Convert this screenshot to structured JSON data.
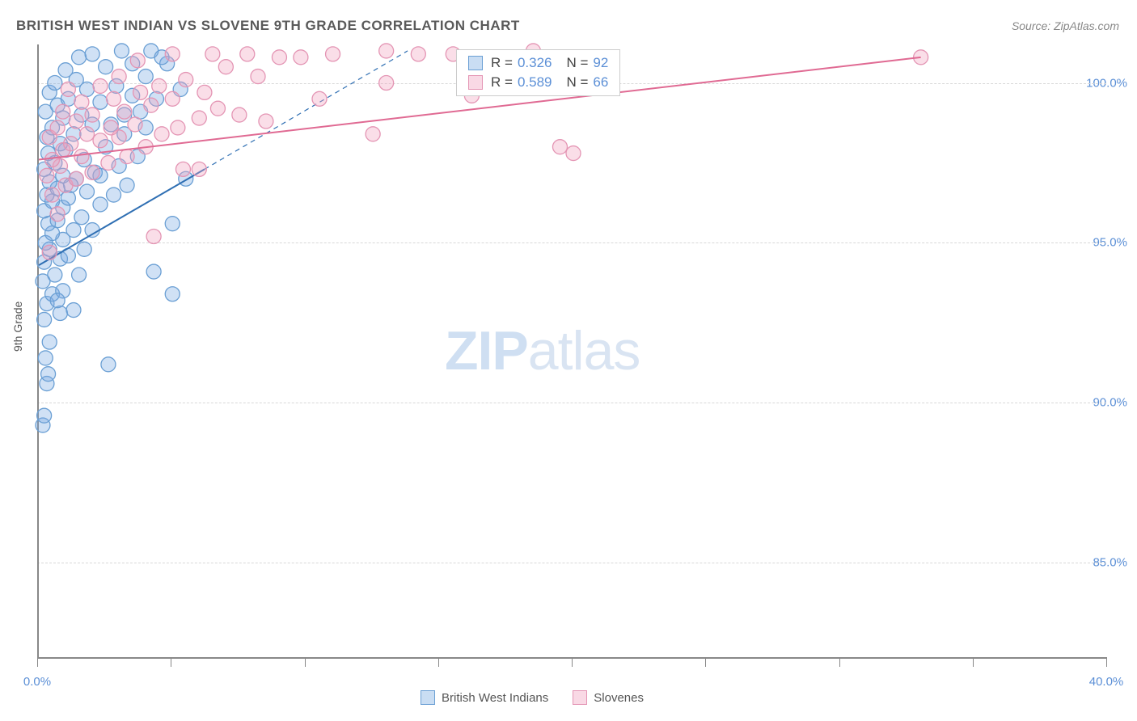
{
  "title": "BRITISH WEST INDIAN VS SLOVENE 9TH GRADE CORRELATION CHART",
  "source": "Source: ZipAtlas.com",
  "ylabel": "9th Grade",
  "watermark_zip": "ZIP",
  "watermark_atlas": "atlas",
  "chart": {
    "type": "scatter",
    "xlim": [
      0,
      40
    ],
    "ylim": [
      82,
      101.2
    ],
    "xtick_labels": [
      "0.0%",
      "40.0%"
    ],
    "xtick_positions": [
      0,
      40
    ],
    "xtick_marks": [
      0,
      5,
      10,
      15,
      20,
      25,
      30,
      35,
      40
    ],
    "ytick_labels": [
      "85.0%",
      "90.0%",
      "95.0%",
      "100.0%"
    ],
    "ytick_positions": [
      85,
      90,
      95,
      100
    ],
    "grid_color": "#d8d8d8",
    "axis_color": "#888888",
    "background_color": "#ffffff",
    "marker_radius": 9,
    "marker_stroke_width": 1.3,
    "line_width": 2,
    "dashed_line_dash": "6,5",
    "series": [
      {
        "name": "British West Indians",
        "fill_color": "rgba(120,170,225,0.35)",
        "stroke_color": "#6a9fd4",
        "line_color": "#2f6fb3",
        "legend_fill": "rgba(120,170,225,0.4)",
        "legend_stroke": "#6a9fd4",
        "R": "0.326",
        "N": "92",
        "trend": {
          "x1": 0,
          "y1": 94.3,
          "x2": 6.2,
          "y2": 97.3
        },
        "trend_ext": {
          "x1": 6.2,
          "y1": 97.3,
          "x2": 13.8,
          "y2": 101.0
        },
        "points": [
          [
            0.15,
            89.3
          ],
          [
            0.2,
            89.6
          ],
          [
            0.3,
            90.6
          ],
          [
            0.35,
            90.9
          ],
          [
            0.25,
            91.4
          ],
          [
            0.4,
            91.9
          ],
          [
            0.2,
            92.6
          ],
          [
            0.8,
            92.8
          ],
          [
            1.3,
            92.9
          ],
          [
            0.3,
            93.1
          ],
          [
            0.5,
            93.4
          ],
          [
            0.9,
            93.5
          ],
          [
            0.15,
            93.8
          ],
          [
            0.6,
            94.0
          ],
          [
            1.5,
            94.0
          ],
          [
            2.6,
            91.2
          ],
          [
            5.0,
            93.4
          ],
          [
            4.3,
            94.1
          ],
          [
            0.2,
            94.4
          ],
          [
            0.8,
            94.5
          ],
          [
            1.1,
            94.6
          ],
          [
            0.4,
            94.8
          ],
          [
            1.7,
            94.8
          ],
          [
            0.25,
            95.0
          ],
          [
            0.9,
            95.1
          ],
          [
            0.5,
            95.3
          ],
          [
            1.3,
            95.4
          ],
          [
            2.0,
            95.4
          ],
          [
            0.35,
            95.6
          ],
          [
            0.7,
            95.7
          ],
          [
            1.6,
            95.8
          ],
          [
            0.2,
            96.0
          ],
          [
            0.9,
            96.1
          ],
          [
            2.3,
            96.2
          ],
          [
            0.5,
            96.3
          ],
          [
            1.1,
            96.4
          ],
          [
            0.3,
            96.5
          ],
          [
            2.8,
            96.5
          ],
          [
            1.8,
            96.6
          ],
          [
            0.7,
            96.7
          ],
          [
            3.3,
            96.8
          ],
          [
            0.4,
            96.9
          ],
          [
            1.4,
            97.0
          ],
          [
            0.9,
            97.1
          ],
          [
            2.1,
            97.2
          ],
          [
            0.2,
            97.3
          ],
          [
            2.3,
            97.1
          ],
          [
            3.0,
            97.4
          ],
          [
            0.6,
            97.5
          ],
          [
            1.7,
            97.6
          ],
          [
            3.7,
            97.7
          ],
          [
            0.35,
            97.8
          ],
          [
            1.0,
            97.9
          ],
          [
            2.5,
            98.0
          ],
          [
            0.8,
            98.1
          ],
          [
            0.3,
            98.3
          ],
          [
            1.3,
            98.4
          ],
          [
            3.2,
            98.4
          ],
          [
            4.0,
            98.6
          ],
          [
            0.5,
            98.6
          ],
          [
            2.0,
            98.7
          ],
          [
            2.7,
            98.7
          ],
          [
            0.9,
            98.9
          ],
          [
            1.6,
            99.0
          ],
          [
            0.25,
            99.1
          ],
          [
            3.8,
            99.1
          ],
          [
            0.7,
            99.3
          ],
          [
            2.3,
            99.4
          ],
          [
            1.1,
            99.5
          ],
          [
            3.5,
            99.6
          ],
          [
            4.4,
            99.5
          ],
          [
            0.4,
            99.7
          ],
          [
            1.8,
            99.8
          ],
          [
            2.9,
            99.9
          ],
          [
            0.6,
            100.0
          ],
          [
            1.4,
            100.1
          ],
          [
            4.0,
            100.2
          ],
          [
            1.0,
            100.4
          ],
          [
            2.5,
            100.5
          ],
          [
            3.5,
            100.6
          ],
          [
            4.8,
            100.6
          ],
          [
            1.5,
            100.8
          ],
          [
            2.0,
            100.9
          ],
          [
            3.1,
            101.0
          ],
          [
            4.2,
            101.0
          ],
          [
            5.3,
            99.8
          ],
          [
            5.0,
            95.6
          ],
          [
            4.6,
            100.8
          ],
          [
            5.5,
            97.0
          ],
          [
            3.2,
            99.0
          ],
          [
            1.2,
            96.8
          ],
          [
            0.7,
            93.2
          ]
        ]
      },
      {
        "name": "Slovenes",
        "fill_color": "rgba(240,160,190,0.35)",
        "stroke_color": "#e495b4",
        "line_color": "#e06a93",
        "legend_fill": "rgba(240,160,190,0.4)",
        "legend_stroke": "#e495b4",
        "R": "0.589",
        "N": "66",
        "trend": {
          "x1": 0,
          "y1": 97.6,
          "x2": 33,
          "y2": 100.8
        },
        "trend_ext": null,
        "points": [
          [
            0.4,
            94.7
          ],
          [
            0.7,
            95.9
          ],
          [
            0.5,
            96.5
          ],
          [
            1.0,
            96.8
          ],
          [
            0.3,
            97.1
          ],
          [
            1.4,
            97.0
          ],
          [
            0.8,
            97.4
          ],
          [
            2.0,
            97.2
          ],
          [
            0.5,
            97.6
          ],
          [
            1.6,
            97.7
          ],
          [
            2.6,
            97.5
          ],
          [
            0.9,
            97.9
          ],
          [
            3.3,
            97.7
          ],
          [
            1.2,
            98.1
          ],
          [
            2.3,
            98.2
          ],
          [
            0.4,
            98.3
          ],
          [
            4.0,
            98.0
          ],
          [
            1.8,
            98.4
          ],
          [
            3.0,
            98.3
          ],
          [
            0.7,
            98.6
          ],
          [
            2.7,
            98.6
          ],
          [
            4.6,
            98.4
          ],
          [
            1.4,
            98.8
          ],
          [
            3.6,
            98.7
          ],
          [
            5.4,
            97.3
          ],
          [
            5.2,
            98.6
          ],
          [
            2.0,
            99.0
          ],
          [
            0.9,
            99.1
          ],
          [
            3.2,
            99.1
          ],
          [
            4.2,
            99.3
          ],
          [
            6.0,
            98.9
          ],
          [
            1.6,
            99.4
          ],
          [
            2.8,
            99.5
          ],
          [
            5.0,
            99.5
          ],
          [
            6.7,
            99.2
          ],
          [
            3.8,
            99.7
          ],
          [
            7.5,
            99.0
          ],
          [
            1.1,
            99.8
          ],
          [
            2.3,
            99.9
          ],
          [
            4.5,
            99.9
          ],
          [
            6.2,
            99.7
          ],
          [
            8.5,
            98.8
          ],
          [
            3.0,
            100.2
          ],
          [
            5.5,
            100.1
          ],
          [
            7.0,
            100.5
          ],
          [
            8.2,
            100.2
          ],
          [
            9.0,
            100.8
          ],
          [
            3.7,
            100.7
          ],
          [
            5.0,
            100.9
          ],
          [
            6.5,
            100.9
          ],
          [
            7.8,
            100.9
          ],
          [
            9.8,
            100.8
          ],
          [
            10.5,
            99.5
          ],
          [
            11.0,
            100.9
          ],
          [
            12.5,
            98.4
          ],
          [
            13.0,
            100.0
          ],
          [
            13.0,
            101.0
          ],
          [
            14.2,
            100.9
          ],
          [
            15.5,
            100.9
          ],
          [
            16.2,
            99.6
          ],
          [
            18.5,
            101.0
          ],
          [
            19.5,
            98.0
          ],
          [
            20.0,
            97.8
          ],
          [
            6.0,
            97.3
          ],
          [
            33.0,
            100.8
          ],
          [
            4.3,
            95.2
          ]
        ]
      }
    ]
  },
  "legend_bottom": [
    {
      "label": "British West Indians",
      "series": 0
    },
    {
      "label": "Slovenes",
      "series": 1
    }
  ]
}
